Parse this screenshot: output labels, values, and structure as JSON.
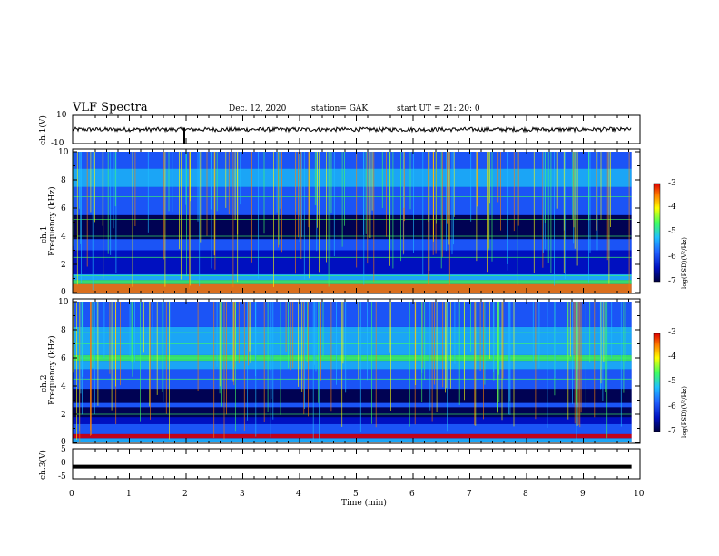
{
  "header": {
    "title": "VLF Spectra",
    "date": "Dec. 12, 2020",
    "station": "station= GAK",
    "start_ut": "start  UT =   21: 20: 0"
  },
  "colors": {
    "colormap": [
      "#000040",
      "#0010c0",
      "#2060ff",
      "#20c0ff",
      "#40ff60",
      "#ffff00",
      "#ff8000",
      "#e00000"
    ],
    "trace": "#000000"
  },
  "chart_data": [
    {
      "type": "line",
      "name": "ch1-waveform",
      "ylabel": "ch.1(V)",
      "ylim": [
        -10,
        10
      ],
      "yticks": [
        "10",
        "-10"
      ],
      "description_values": {
        "mean": 0,
        "amplitude": 1.5
      }
    },
    {
      "type": "heatmap",
      "name": "ch1-spectrogram",
      "ylabel": "ch.1\nFrequency  (kHz)",
      "ylim": [
        0,
        10
      ],
      "yticks": [
        "0",
        "2",
        "4",
        "6",
        "8",
        "10"
      ],
      "colorbar": {
        "label": "log(PSD)(V²/Hz)",
        "range": [
          -7,
          -3
        ],
        "ticks": [
          "-3",
          "-4",
          "-5",
          "-6",
          "-7"
        ]
      }
    },
    {
      "type": "heatmap",
      "name": "ch2-spectrogram",
      "ylabel": "ch.2\nFrequency  (kHz)",
      "ylim": [
        0,
        10
      ],
      "yticks": [
        "0",
        "2",
        "4",
        "6",
        "8",
        "10"
      ],
      "colorbar": {
        "label": "log(PSD)(V²/Hz)",
        "range": [
          -7,
          -3
        ],
        "ticks": [
          "-3",
          "-4",
          "-5",
          "-6",
          "-7"
        ]
      }
    },
    {
      "type": "line",
      "name": "ch3-waveform",
      "ylabel": "ch.3(V)",
      "ylim": [
        -5,
        5
      ],
      "yticks": [
        "5",
        "0",
        "-5"
      ],
      "values_constant": -1
    }
  ],
  "xaxis": {
    "label": "Time  (min)",
    "ticks": [
      "0",
      "1",
      "2",
      "3",
      "4",
      "5",
      "6",
      "7",
      "8",
      "9",
      "10"
    ],
    "range": [
      0,
      10
    ],
    "data_end": 9.85
  },
  "labels": {
    "ch1_v": "ch.1(V)",
    "ch1_freq_a": "ch.1",
    "ch1_freq_b": "Frequency  (kHz)",
    "ch2_freq_a": "ch.2",
    "ch2_freq_b": "Frequency  (kHz)",
    "ch3_v": "ch.3(V)",
    "psd_label": "log(PSD)(V²/Hz)"
  }
}
